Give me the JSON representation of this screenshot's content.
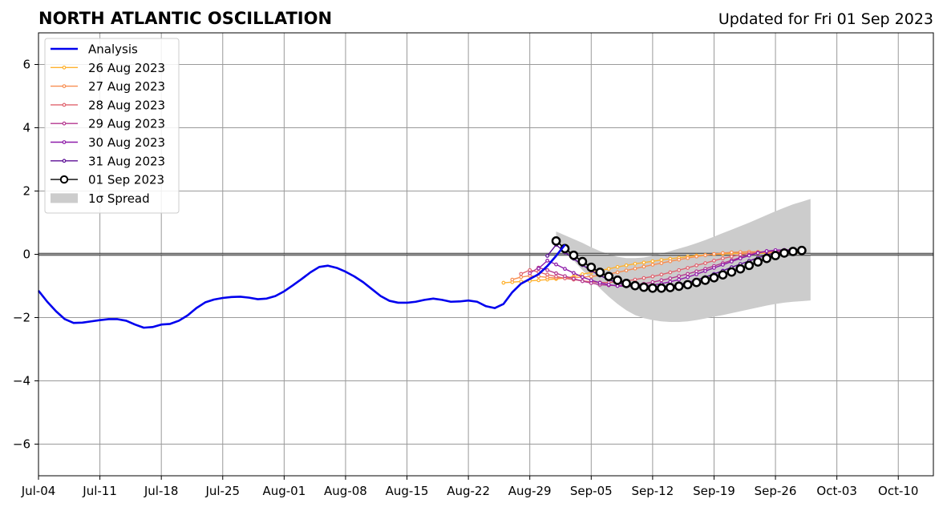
{
  "chart_data": {
    "type": "line",
    "title": "NORTH ATLANTIC OSCILLATION",
    "subtitle": "Updated for Fri 01 Sep 2023",
    "x_tick_labels": [
      "Jul-04",
      "Jul-11",
      "Jul-18",
      "Jul-25",
      "Aug-01",
      "Aug-08",
      "Aug-15",
      "Aug-22",
      "Aug-29",
      "Sep-05",
      "Sep-12",
      "Sep-19",
      "Sep-26",
      "Oct-03",
      "Oct-10"
    ],
    "y_ticks": [
      -6,
      -4,
      -2,
      0,
      2,
      4,
      6
    ],
    "y_tick_labels": [
      "−6",
      "−4",
      "−2",
      "0",
      "2",
      "4",
      "6"
    ],
    "xlim": [
      "2023-07-04",
      "2023-10-14"
    ],
    "ylim": [
      -7,
      7
    ],
    "grid": true,
    "legend_position": "top-left",
    "zero_line": true,
    "analysis": {
      "name": "Analysis",
      "color": "#0000ee",
      "start_date": "2023-07-04",
      "values": [
        -1.15,
        -1.5,
        -1.8,
        -2.05,
        -2.17,
        -2.16,
        -2.12,
        -2.08,
        -2.05,
        -2.05,
        -2.1,
        -2.22,
        -2.32,
        -2.3,
        -2.22,
        -2.2,
        -2.1,
        -1.93,
        -1.7,
        -1.52,
        -1.43,
        -1.38,
        -1.35,
        -1.34,
        -1.37,
        -1.42,
        -1.4,
        -1.32,
        -1.17,
        -0.98,
        -0.78,
        -0.57,
        -0.4,
        -0.36,
        -0.43,
        -0.55,
        -0.7,
        -0.88,
        -1.1,
        -1.32,
        -1.47,
        -1.53,
        -1.53,
        -1.5,
        -1.44,
        -1.4,
        -1.44,
        -1.5,
        -1.49,
        -1.46,
        -1.5,
        -1.64,
        -1.7,
        -1.57,
        -1.2,
        -0.93,
        -0.78,
        -0.63,
        -0.37,
        -0.05,
        0.3
      ]
    },
    "forecasts": [
      {
        "name": "26 Aug 2023",
        "color": "#ffb22e",
        "start_date": "2023-08-26",
        "values": [
          -0.9,
          -0.88,
          -0.86,
          -0.84,
          -0.82,
          -0.8,
          -0.78,
          -0.75,
          -0.7,
          -0.63,
          -0.57,
          -0.51,
          -0.46,
          -0.4,
          -0.35,
          -0.3,
          -0.26,
          -0.22,
          -0.18,
          -0.14,
          -0.11,
          -0.07,
          -0.04,
          -0.02,
          0.0,
          0.01,
          0.02,
          0.03,
          0.03,
          0.03,
          0.04,
          0.04,
          0.05,
          0.05,
          0.05
        ]
      },
      {
        "name": "27 Aug 2023",
        "color": "#f88e51",
        "start_date": "2023-08-27",
        "values": [
          -0.8,
          -0.72,
          -0.68,
          -0.7,
          -0.73,
          -0.75,
          -0.75,
          -0.74,
          -0.72,
          -0.7,
          -0.67,
          -0.62,
          -0.57,
          -0.51,
          -0.45,
          -0.39,
          -0.33,
          -0.28,
          -0.22,
          -0.17,
          -0.12,
          -0.07,
          -0.03,
          0.01,
          0.04,
          0.06,
          0.07,
          0.08,
          0.08,
          0.08,
          0.08,
          0.08,
          0.08,
          0.08
        ]
      },
      {
        "name": "28 Aug 2023",
        "color": "#e0636f",
        "start_date": "2023-08-28",
        "values": [
          -0.62,
          -0.5,
          -0.56,
          -0.64,
          -0.7,
          -0.76,
          -0.8,
          -0.84,
          -0.87,
          -0.89,
          -0.89,
          -0.87,
          -0.84,
          -0.8,
          -0.75,
          -0.7,
          -0.64,
          -0.57,
          -0.5,
          -0.43,
          -0.35,
          -0.28,
          -0.2,
          -0.13,
          -0.07,
          -0.01,
          0.03,
          0.06,
          0.07,
          0.08,
          0.08,
          0.08,
          0.08
        ]
      },
      {
        "name": "29 Aug 2023",
        "color": "#b5378f",
        "start_date": "2023-08-29",
        "values": [
          -0.6,
          -0.42,
          -0.5,
          -0.6,
          -0.69,
          -0.77,
          -0.85,
          -0.91,
          -0.96,
          -0.98,
          -0.99,
          -0.99,
          -0.96,
          -0.93,
          -0.88,
          -0.82,
          -0.76,
          -0.69,
          -0.62,
          -0.54,
          -0.46,
          -0.37,
          -0.28,
          -0.19,
          -0.1,
          -0.02,
          0.05,
          0.1,
          0.12,
          0.13,
          0.13,
          0.13
        ]
      },
      {
        "name": "30 Aug 2023",
        "color": "#8e1ca9",
        "start_date": "2023-08-30",
        "values": [
          -0.45,
          -0.2,
          -0.32,
          -0.46,
          -0.59,
          -0.72,
          -0.82,
          -0.9,
          -0.96,
          -1.0,
          -1.01,
          -1.01,
          -1.0,
          -0.97,
          -0.93,
          -0.87,
          -0.8,
          -0.72,
          -0.63,
          -0.53,
          -0.43,
          -0.33,
          -0.23,
          -0.13,
          -0.04,
          0.04,
          0.1,
          0.13,
          0.14,
          0.14,
          0.14
        ]
      },
      {
        "name": "31 Aug 2023",
        "color": "#5b0e95",
        "start_date": "2023-08-31",
        "values": [
          -0.05,
          0.3,
          0.06,
          -0.14,
          -0.34,
          -0.52,
          -0.67,
          -0.8,
          -0.9,
          -0.97,
          -1.02,
          -1.05,
          -1.05,
          -1.04,
          -1.01,
          -0.96,
          -0.89,
          -0.81,
          -0.72,
          -0.62,
          -0.52,
          -0.41,
          -0.31,
          -0.21,
          -0.11,
          -0.02,
          0.05,
          0.09,
          0.11,
          0.12
        ]
      },
      {
        "name": "01 Sep 2023",
        "color": "#000000",
        "start_date": "2023-09-01",
        "values": [
          0.42,
          0.18,
          -0.03,
          -0.23,
          -0.41,
          -0.57,
          -0.7,
          -0.82,
          -0.92,
          -0.99,
          -1.04,
          -1.07,
          -1.07,
          -1.05,
          -1.01,
          -0.96,
          -0.89,
          -0.82,
          -0.74,
          -0.65,
          -0.56,
          -0.46,
          -0.35,
          -0.24,
          -0.13,
          -0.04,
          0.04,
          0.09,
          0.12
        ]
      }
    ],
    "spread": {
      "name": "1σ Spread",
      "color": "#cccccc",
      "start_date": "2023-09-01",
      "upper": [
        0.72,
        0.6,
        0.48,
        0.36,
        0.22,
        0.1,
        0.0,
        -0.08,
        -0.12,
        -0.12,
        -0.1,
        -0.05,
        0.02,
        0.1,
        0.18,
        0.26,
        0.35,
        0.45,
        0.56,
        0.67,
        0.78,
        0.89,
        1.0,
        1.12,
        1.24,
        1.36,
        1.47,
        1.58,
        1.66,
        1.75
      ],
      "lower": [
        0.42,
        0.12,
        -0.2,
        -0.5,
        -0.8,
        -1.08,
        -1.34,
        -1.57,
        -1.77,
        -1.92,
        -2.02,
        -2.08,
        -2.12,
        -2.14,
        -2.14,
        -2.12,
        -2.08,
        -2.03,
        -1.97,
        -1.92,
        -1.86,
        -1.8,
        -1.74,
        -1.68,
        -1.62,
        -1.57,
        -1.53,
        -1.5,
        -1.48,
        -1.46
      ]
    }
  }
}
